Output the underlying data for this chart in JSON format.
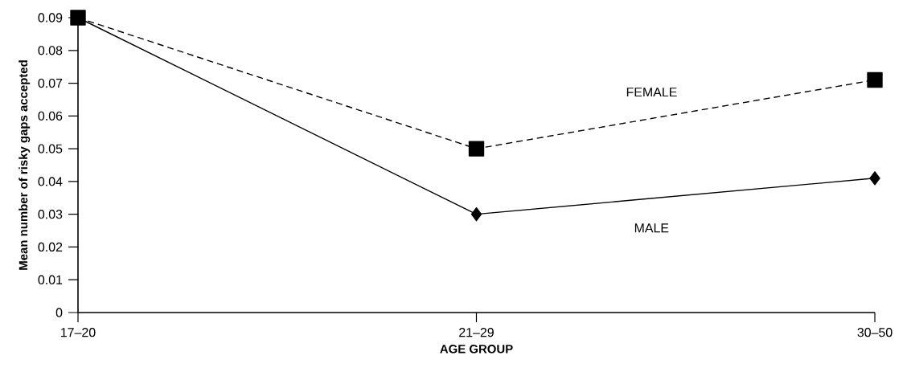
{
  "chart_data": {
    "type": "line",
    "xlabel": "**AGE GROUP**",
    "ylabel": "**Mean number of risky gaps accepted**",
    "categories": [
      "17–20",
      "21–29",
      "30–50"
    ],
    "series": [
      {
        "name": "FEMALE",
        "color": "#000000",
        "values": [
          0.09,
          0.05,
          0.071
        ],
        "marker": "square",
        "line_style": "dashed"
      },
      {
        "name": "MALE",
        "color": "#000000",
        "values": [
          0.09,
          0.03,
          0.041
        ],
        "marker": "diamond",
        "line_style": "solid"
      }
    ],
    "ylim": [
      0,
      0.09
    ],
    "yticks": [
      0,
      0.01,
      0.02,
      0.03,
      0.04,
      0.05,
      0.06,
      0.07,
      0.08,
      0.09
    ],
    "grid": false,
    "legend": false
  }
}
